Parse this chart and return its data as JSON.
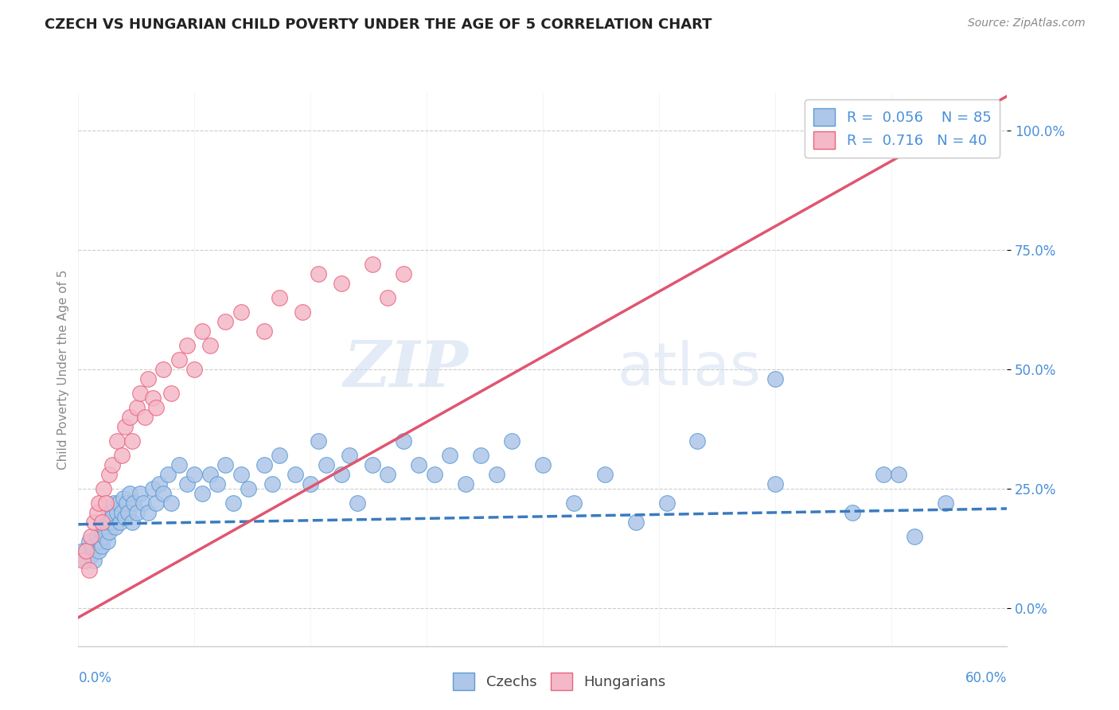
{
  "title": "CZECH VS HUNGARIAN CHILD POVERTY UNDER THE AGE OF 5 CORRELATION CHART",
  "source_text": "Source: ZipAtlas.com",
  "ylabel": "Child Poverty Under the Age of 5",
  "watermark_zip": "ZIP",
  "watermark_atlas": "atlas",
  "xlim": [
    0.0,
    0.6
  ],
  "ylim": [
    -0.08,
    1.08
  ],
  "ytick_values": [
    0.0,
    0.25,
    0.5,
    0.75,
    1.0
  ],
  "czech_R": 0.056,
  "czech_N": 85,
  "hungarian_R": 0.716,
  "hungarian_N": 40,
  "czech_color": "#aec6e8",
  "hungarian_color": "#f4b8c8",
  "czech_edge_color": "#5b9bd5",
  "hungarian_edge_color": "#e8637a",
  "czech_line_color": "#3a7bbf",
  "hungarian_line_color": "#e05570",
  "tick_color": "#4a90d9",
  "grid_color": "#cccccc",
  "czech_trend_intercept": 0.175,
  "czech_trend_slope": 0.055,
  "hungarian_trend_intercept": -0.02,
  "hungarian_trend_slope": 1.82,
  "czech_x": [
    0.003,
    0.005,
    0.007,
    0.008,
    0.009,
    0.01,
    0.012,
    0.013,
    0.014,
    0.015,
    0.015,
    0.016,
    0.017,
    0.018,
    0.019,
    0.02,
    0.02,
    0.021,
    0.022,
    0.023,
    0.024,
    0.025,
    0.026,
    0.027,
    0.028,
    0.029,
    0.03,
    0.031,
    0.032,
    0.033,
    0.035,
    0.036,
    0.038,
    0.04,
    0.042,
    0.045,
    0.048,
    0.05,
    0.052,
    0.055,
    0.058,
    0.06,
    0.065,
    0.07,
    0.075,
    0.08,
    0.085,
    0.09,
    0.095,
    0.1,
    0.105,
    0.11,
    0.12,
    0.125,
    0.13,
    0.14,
    0.15,
    0.155,
    0.16,
    0.17,
    0.175,
    0.18,
    0.19,
    0.2,
    0.21,
    0.22,
    0.23,
    0.24,
    0.25,
    0.26,
    0.27,
    0.28,
    0.3,
    0.32,
    0.34,
    0.36,
    0.38,
    0.4,
    0.45,
    0.5,
    0.52,
    0.54,
    0.56,
    0.45,
    0.53
  ],
  "czech_y": [
    0.12,
    0.1,
    0.14,
    0.11,
    0.13,
    0.1,
    0.15,
    0.12,
    0.14,
    0.16,
    0.13,
    0.17,
    0.15,
    0.18,
    0.14,
    0.16,
    0.2,
    0.18,
    0.19,
    0.22,
    0.17,
    0.2,
    0.22,
    0.18,
    0.2,
    0.23,
    0.19,
    0.22,
    0.2,
    0.24,
    0.18,
    0.22,
    0.2,
    0.24,
    0.22,
    0.2,
    0.25,
    0.22,
    0.26,
    0.24,
    0.28,
    0.22,
    0.3,
    0.26,
    0.28,
    0.24,
    0.28,
    0.26,
    0.3,
    0.22,
    0.28,
    0.25,
    0.3,
    0.26,
    0.32,
    0.28,
    0.26,
    0.35,
    0.3,
    0.28,
    0.32,
    0.22,
    0.3,
    0.28,
    0.35,
    0.3,
    0.28,
    0.32,
    0.26,
    0.32,
    0.28,
    0.35,
    0.3,
    0.22,
    0.28,
    0.18,
    0.22,
    0.35,
    0.26,
    0.2,
    0.28,
    0.15,
    0.22,
    0.48,
    0.28
  ],
  "hungarian_x": [
    0.003,
    0.005,
    0.007,
    0.008,
    0.01,
    0.012,
    0.013,
    0.015,
    0.016,
    0.018,
    0.02,
    0.022,
    0.025,
    0.028,
    0.03,
    0.033,
    0.035,
    0.038,
    0.04,
    0.043,
    0.045,
    0.048,
    0.05,
    0.055,
    0.06,
    0.065,
    0.07,
    0.075,
    0.08,
    0.085,
    0.095,
    0.105,
    0.12,
    0.13,
    0.145,
    0.155,
    0.17,
    0.19,
    0.2,
    0.21
  ],
  "hungarian_y": [
    0.1,
    0.12,
    0.08,
    0.15,
    0.18,
    0.2,
    0.22,
    0.18,
    0.25,
    0.22,
    0.28,
    0.3,
    0.35,
    0.32,
    0.38,
    0.4,
    0.35,
    0.42,
    0.45,
    0.4,
    0.48,
    0.44,
    0.42,
    0.5,
    0.45,
    0.52,
    0.55,
    0.5,
    0.58,
    0.55,
    0.6,
    0.62,
    0.58,
    0.65,
    0.62,
    0.7,
    0.68,
    0.72,
    0.65,
    0.7
  ]
}
